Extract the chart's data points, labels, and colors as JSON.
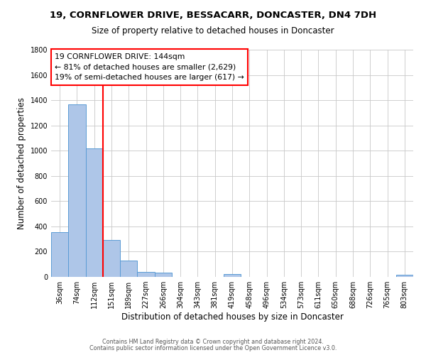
{
  "title1": "19, CORNFLOWER DRIVE, BESSACARR, DONCASTER, DN4 7DH",
  "title2": "Size of property relative to detached houses in Doncaster",
  "xlabel": "Distribution of detached houses by size in Doncaster",
  "ylabel": "Number of detached properties",
  "bin_labels": [
    "36sqm",
    "74sqm",
    "112sqm",
    "151sqm",
    "189sqm",
    "227sqm",
    "266sqm",
    "304sqm",
    "343sqm",
    "381sqm",
    "419sqm",
    "458sqm",
    "496sqm",
    "534sqm",
    "573sqm",
    "611sqm",
    "650sqm",
    "688sqm",
    "726sqm",
    "765sqm",
    "803sqm"
  ],
  "bar_heights": [
    355,
    1365,
    1020,
    290,
    130,
    40,
    35,
    0,
    0,
    0,
    20,
    0,
    0,
    0,
    0,
    0,
    0,
    0,
    0,
    0,
    15
  ],
  "bar_color": "#aec6e8",
  "bar_edge_color": "#5b9bd5",
  "vline_color": "red",
  "vline_x_index": 3,
  "ylim": [
    0,
    1800
  ],
  "yticks": [
    0,
    200,
    400,
    600,
    800,
    1000,
    1200,
    1400,
    1600,
    1800
  ],
  "annotation_title": "19 CORNFLOWER DRIVE: 144sqm",
  "annotation_line1": "← 81% of detached houses are smaller (2,629)",
  "annotation_line2": "19% of semi-detached houses are larger (617) →",
  "annotation_box_color": "#ffffff",
  "annotation_box_edge": "red",
  "footer1": "Contains HM Land Registry data © Crown copyright and database right 2024.",
  "footer2": "Contains public sector information licensed under the Open Government Licence v3.0.",
  "background_color": "#ffffff",
  "grid_color": "#c8c8c8",
  "title1_fontsize": 9.5,
  "title2_fontsize": 8.5,
  "ylabel_fontsize": 8.5,
  "xlabel_fontsize": 8.5,
  "tick_fontsize": 7.0,
  "annot_fontsize": 7.8,
  "footer_fontsize": 5.8
}
